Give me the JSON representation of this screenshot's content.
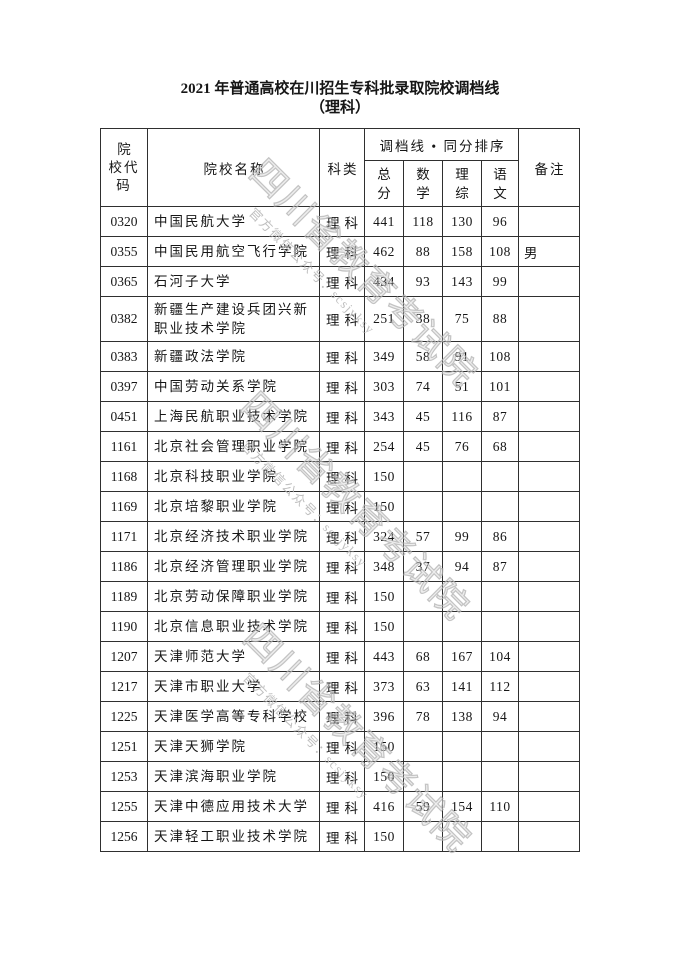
{
  "page": {
    "title_line1": "2021 年普通高校在川招生专科批录取院校调档线",
    "title_line2": "（理科）"
  },
  "watermark": {
    "big_text": "四川省教育考试院",
    "small_text": "官方微信公众号：scsjyksy",
    "color": "#c5c5c5"
  },
  "table": {
    "headers": {
      "code": "院校代码",
      "name": "院校名称",
      "category": "科类",
      "group": "调档线 • 同分排序",
      "sub": [
        "总分",
        "数学",
        "理综",
        "语文"
      ],
      "remark": "备注"
    },
    "rows": [
      {
        "code": "0320",
        "name": "中国民航大学",
        "category": "理科",
        "total": "441",
        "math": "118",
        "science": "130",
        "chinese": "96",
        "remark": ""
      },
      {
        "code": "0355",
        "name": "中国民用航空飞行学院",
        "category": "理科",
        "total": "462",
        "math": "88",
        "science": "158",
        "chinese": "108",
        "remark": "男"
      },
      {
        "code": "0365",
        "name": "石河子大学",
        "category": "理科",
        "total": "434",
        "math": "93",
        "science": "143",
        "chinese": "99",
        "remark": ""
      },
      {
        "code": "0382",
        "name": "新疆生产建设兵团兴新职业技术学院",
        "category": "理科",
        "total": "251",
        "math": "38",
        "science": "75",
        "chinese": "88",
        "remark": ""
      },
      {
        "code": "0383",
        "name": "新疆政法学院",
        "category": "理科",
        "total": "349",
        "math": "58",
        "science": "91",
        "chinese": "108",
        "remark": ""
      },
      {
        "code": "0397",
        "name": "中国劳动关系学院",
        "category": "理科",
        "total": "303",
        "math": "74",
        "science": "51",
        "chinese": "101",
        "remark": ""
      },
      {
        "code": "0451",
        "name": "上海民航职业技术学院",
        "category": "理科",
        "total": "343",
        "math": "45",
        "science": "116",
        "chinese": "87",
        "remark": ""
      },
      {
        "code": "1161",
        "name": "北京社会管理职业学院",
        "category": "理科",
        "total": "254",
        "math": "45",
        "science": "76",
        "chinese": "68",
        "remark": ""
      },
      {
        "code": "1168",
        "name": "北京科技职业学院",
        "category": "理科",
        "total": "150",
        "math": "",
        "science": "",
        "chinese": "",
        "remark": ""
      },
      {
        "code": "1169",
        "name": "北京培黎职业学院",
        "category": "理科",
        "total": "150",
        "math": "",
        "science": "",
        "chinese": "",
        "remark": ""
      },
      {
        "code": "1171",
        "name": "北京经济技术职业学院",
        "category": "理科",
        "total": "324",
        "math": "57",
        "science": "99",
        "chinese": "86",
        "remark": ""
      },
      {
        "code": "1186",
        "name": "北京经济管理职业学院",
        "category": "理科",
        "total": "348",
        "math": "37",
        "science": "94",
        "chinese": "87",
        "remark": ""
      },
      {
        "code": "1189",
        "name": "北京劳动保障职业学院",
        "category": "理科",
        "total": "150",
        "math": "",
        "science": "",
        "chinese": "",
        "remark": ""
      },
      {
        "code": "1190",
        "name": "北京信息职业技术学院",
        "category": "理科",
        "total": "150",
        "math": "",
        "science": "",
        "chinese": "",
        "remark": ""
      },
      {
        "code": "1207",
        "name": "天津师范大学",
        "category": "理科",
        "total": "443",
        "math": "68",
        "science": "167",
        "chinese": "104",
        "remark": ""
      },
      {
        "code": "1217",
        "name": "天津市职业大学",
        "category": "理科",
        "total": "373",
        "math": "63",
        "science": "141",
        "chinese": "112",
        "remark": ""
      },
      {
        "code": "1225",
        "name": "天津医学高等专科学校",
        "category": "理科",
        "total": "396",
        "math": "78",
        "science": "138",
        "chinese": "94",
        "remark": ""
      },
      {
        "code": "1251",
        "name": "天津天狮学院",
        "category": "理科",
        "total": "150",
        "math": "",
        "science": "",
        "chinese": "",
        "remark": ""
      },
      {
        "code": "1253",
        "name": "天津滨海职业学院",
        "category": "理科",
        "total": "150",
        "math": "",
        "science": "",
        "chinese": "",
        "remark": ""
      },
      {
        "code": "1255",
        "name": "天津中德应用技术大学",
        "category": "理科",
        "total": "416",
        "math": "59",
        "science": "154",
        "chinese": "110",
        "remark": ""
      },
      {
        "code": "1256",
        "name": "天津轻工职业技术学院",
        "category": "理科",
        "total": "150",
        "math": "",
        "science": "",
        "chinese": "",
        "remark": ""
      }
    ]
  }
}
